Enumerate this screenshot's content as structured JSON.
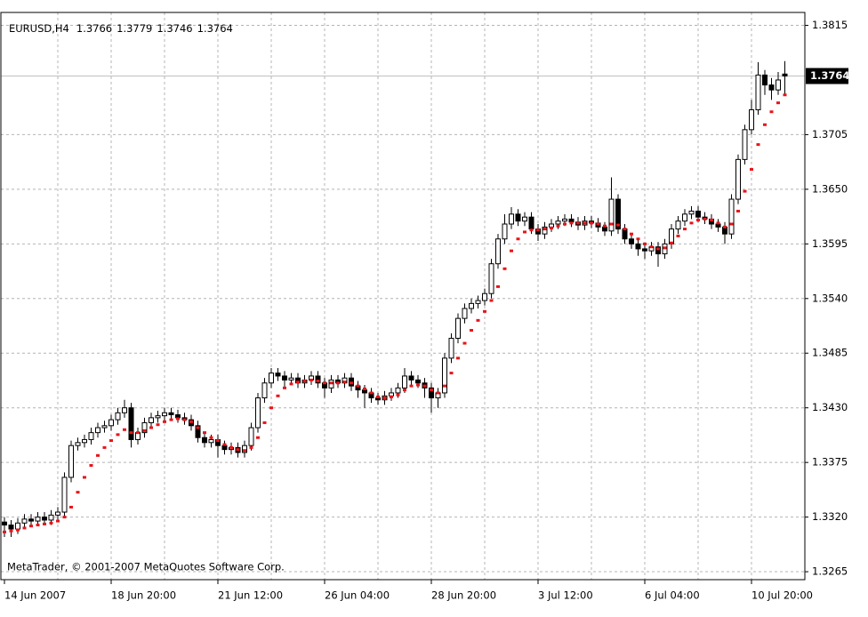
{
  "chart_data": {
    "type": "candlestick",
    "title": "EURUSD,H4",
    "annotation": "MetaTrader, © 2001-2007 MetaQuotes Software Corp.",
    "categories": [
      "14 Jun 2007",
      null,
      null,
      null,
      null,
      null,
      null,
      null,
      null,
      null,
      null,
      null,
      null,
      null,
      null,
      null,
      "18 Jun 20:00",
      null,
      null,
      null,
      null,
      null,
      null,
      null,
      null,
      null,
      null,
      null,
      null,
      null,
      null,
      null,
      "21 Jun 12:00",
      null,
      null,
      null,
      null,
      null,
      null,
      null,
      null,
      null,
      null,
      null,
      null,
      null,
      null,
      null,
      "26 Jun 04:00",
      null,
      null,
      null,
      null,
      null,
      null,
      null,
      null,
      null,
      null,
      null,
      null,
      null,
      null,
      null,
      "28 Jun 20:00",
      null,
      null,
      null,
      null,
      null,
      null,
      null,
      null,
      null,
      null,
      null,
      null,
      null,
      null,
      null,
      "3 Jul 12:00",
      null,
      null,
      null,
      null,
      null,
      null,
      null,
      null,
      null,
      null,
      null,
      null,
      null,
      null,
      null,
      "6 Jul 04:00",
      null,
      null,
      null,
      null,
      null,
      null,
      null,
      null,
      null,
      null,
      null,
      null,
      null,
      null,
      null,
      "10 Jul 20:00",
      null,
      null,
      null,
      null,
      null
    ],
    "open": [
      1.3315,
      1.3312,
      1.3308,
      1.3314,
      1.3318,
      1.3316,
      1.332,
      1.3317,
      1.3322,
      1.3325,
      1.336,
      1.3392,
      1.3395,
      1.3398,
      1.3405,
      1.341,
      1.3412,
      1.3418,
      1.3425,
      1.343,
      1.3398,
      1.3405,
      1.3415,
      1.342,
      1.3422,
      1.3425,
      1.3423,
      1.342,
      1.3418,
      1.3412,
      1.34,
      1.3395,
      1.3398,
      1.3392,
      1.3388,
      1.339,
      1.3385,
      1.3392,
      1.341,
      1.344,
      1.3455,
      1.3465,
      1.3462,
      1.3458,
      1.346,
      1.3455,
      1.3458,
      1.3462,
      1.3455,
      1.345,
      1.3458,
      1.3455,
      1.346,
      1.3452,
      1.3448,
      1.3445,
      1.344,
      1.3438,
      1.3442,
      1.3445,
      1.345,
      1.3462,
      1.3458,
      1.3455,
      1.345,
      1.344,
      1.3445,
      1.348,
      1.35,
      1.352,
      1.353,
      1.3535,
      1.3538,
      1.3545,
      1.3575,
      1.36,
      1.3615,
      1.3625,
      1.3618,
      1.3622,
      1.361,
      1.3605,
      1.3612,
      1.3615,
      1.3618,
      1.362,
      1.3617,
      1.3614,
      1.3618,
      1.3616,
      1.3612,
      1.3608,
      1.364,
      1.361,
      1.36,
      1.3595,
      1.359,
      1.3588,
      1.3592,
      1.3585,
      1.3595,
      1.361,
      1.3618,
      1.3625,
      1.3628,
      1.3622,
      1.362,
      1.3615,
      1.3612,
      1.3605,
      1.364,
      1.368,
      1.371,
      1.373,
      1.3765,
      1.3755,
      1.375,
      1.3766
    ],
    "high": [
      1.332,
      1.3317,
      1.3319,
      1.3323,
      1.3323,
      1.3325,
      1.3325,
      1.3327,
      1.333,
      1.3365,
      1.3397,
      1.34,
      1.3403,
      1.341,
      1.3415,
      1.3417,
      1.3423,
      1.343,
      1.3438,
      1.3435,
      1.341,
      1.342,
      1.3425,
      1.3427,
      1.343,
      1.343,
      1.3428,
      1.3425,
      1.3423,
      1.3417,
      1.3405,
      1.3403,
      1.3403,
      1.3397,
      1.3395,
      1.3395,
      1.3397,
      1.3415,
      1.3445,
      1.346,
      1.347,
      1.347,
      1.3467,
      1.3465,
      1.3465,
      1.3463,
      1.3467,
      1.3467,
      1.346,
      1.3463,
      1.3463,
      1.3465,
      1.3465,
      1.3457,
      1.3453,
      1.345,
      1.3445,
      1.3447,
      1.345,
      1.3455,
      1.347,
      1.3467,
      1.3463,
      1.346,
      1.3455,
      1.345,
      1.3485,
      1.3505,
      1.3525,
      1.3535,
      1.354,
      1.3543,
      1.355,
      1.358,
      1.3605,
      1.3625,
      1.3632,
      1.363,
      1.3627,
      1.3627,
      1.3615,
      1.3617,
      1.362,
      1.3623,
      1.3625,
      1.3625,
      1.3622,
      1.3623,
      1.3623,
      1.3621,
      1.3617,
      1.3662,
      1.3645,
      1.3615,
      1.3605,
      1.36,
      1.3595,
      1.3597,
      1.3597,
      1.36,
      1.3615,
      1.3623,
      1.363,
      1.3633,
      1.3633,
      1.3627,
      1.3625,
      1.362,
      1.3617,
      1.3645,
      1.3685,
      1.3715,
      1.374,
      1.3778,
      1.377,
      1.3762,
      1.3768,
      1.3779
    ],
    "low": [
      1.33,
      1.33,
      1.3303,
      1.3309,
      1.3311,
      1.3311,
      1.3312,
      1.3312,
      1.3317,
      1.332,
      1.3355,
      1.3387,
      1.339,
      1.3393,
      1.34,
      1.3405,
      1.3407,
      1.3413,
      1.342,
      1.339,
      1.3393,
      1.34,
      1.341,
      1.3415,
      1.3417,
      1.3418,
      1.3415,
      1.3413,
      1.3407,
      1.3395,
      1.339,
      1.339,
      1.338,
      1.3383,
      1.3383,
      1.338,
      1.338,
      1.3387,
      1.3405,
      1.3435,
      1.345,
      1.3457,
      1.345,
      1.3453,
      1.345,
      1.345,
      1.3453,
      1.345,
      1.344,
      1.3445,
      1.345,
      1.345,
      1.3447,
      1.344,
      1.343,
      1.3435,
      1.3433,
      1.3433,
      1.3437,
      1.344,
      1.3445,
      1.3453,
      1.345,
      1.344,
      1.3425,
      1.343,
      1.344,
      1.3475,
      1.3495,
      1.3515,
      1.3525,
      1.353,
      1.3533,
      1.354,
      1.357,
      1.3595,
      1.361,
      1.3613,
      1.3613,
      1.3605,
      1.3598,
      1.36,
      1.3607,
      1.361,
      1.3613,
      1.3612,
      1.3609,
      1.3609,
      1.3611,
      1.3607,
      1.3603,
      1.3603,
      1.3605,
      1.3595,
      1.359,
      1.3583,
      1.358,
      1.3583,
      1.3572,
      1.358,
      1.359,
      1.3605,
      1.3613,
      1.362,
      1.3617,
      1.3615,
      1.361,
      1.3607,
      1.3595,
      1.36,
      1.3635,
      1.3675,
      1.3705,
      1.3725,
      1.3745,
      1.374,
      1.3745,
      1.3746
    ],
    "close": [
      1.3312,
      1.3308,
      1.3314,
      1.3318,
      1.3316,
      1.332,
      1.3317,
      1.3322,
      1.3325,
      1.336,
      1.3392,
      1.3395,
      1.3398,
      1.3405,
      1.341,
      1.3412,
      1.3418,
      1.3425,
      1.343,
      1.3398,
      1.3405,
      1.3415,
      1.342,
      1.3422,
      1.3425,
      1.3423,
      1.342,
      1.3418,
      1.3412,
      1.34,
      1.3395,
      1.3398,
      1.3392,
      1.3388,
      1.339,
      1.3385,
      1.3392,
      1.341,
      1.344,
      1.3455,
      1.3465,
      1.3462,
      1.3458,
      1.346,
      1.3455,
      1.3458,
      1.3462,
      1.3455,
      1.345,
      1.3458,
      1.3455,
      1.346,
      1.3452,
      1.3448,
      1.3445,
      1.344,
      1.3438,
      1.3442,
      1.3445,
      1.345,
      1.3462,
      1.3458,
      1.3455,
      1.345,
      1.344,
      1.3445,
      1.348,
      1.35,
      1.352,
      1.353,
      1.3535,
      1.3538,
      1.3545,
      1.3575,
      1.36,
      1.3615,
      1.3625,
      1.3618,
      1.3622,
      1.361,
      1.3605,
      1.3612,
      1.3615,
      1.3618,
      1.362,
      1.3617,
      1.3614,
      1.3618,
      1.3616,
      1.3612,
      1.3608,
      1.364,
      1.361,
      1.36,
      1.3595,
      1.359,
      1.3588,
      1.3592,
      1.3585,
      1.3595,
      1.361,
      1.3618,
      1.3625,
      1.3628,
      1.3622,
      1.362,
      1.3615,
      1.3612,
      1.3605,
      1.364,
      1.368,
      1.371,
      1.373,
      1.3765,
      1.3755,
      1.375,
      1.376,
      1.3764
    ],
    "indicator": {
      "color": "#e8141a",
      "values": [
        1.3305,
        1.3306,
        1.3307,
        1.3309,
        1.3311,
        1.3312,
        1.3313,
        1.3314,
        1.3316,
        1.332,
        1.333,
        1.3345,
        1.336,
        1.3372,
        1.3382,
        1.339,
        1.3397,
        1.3403,
        1.3408,
        1.3405,
        1.3405,
        1.3407,
        1.341,
        1.3413,
        1.3416,
        1.3418,
        1.3419,
        1.3418,
        1.3416,
        1.341,
        1.3405,
        1.34,
        1.3397,
        1.3393,
        1.339,
        1.3388,
        1.3387,
        1.339,
        1.34,
        1.3415,
        1.343,
        1.3442,
        1.345,
        1.3454,
        1.3456,
        1.3457,
        1.3458,
        1.3457,
        1.3455,
        1.3455,
        1.3455,
        1.3456,
        1.3455,
        1.3452,
        1.3449,
        1.3445,
        1.3441,
        1.344,
        1.3441,
        1.3443,
        1.3448,
        1.3452,
        1.3453,
        1.3452,
        1.3448,
        1.3445,
        1.3452,
        1.3465,
        1.348,
        1.3495,
        1.3508,
        1.3518,
        1.3527,
        1.3538,
        1.3552,
        1.357,
        1.3588,
        1.36,
        1.3607,
        1.3609,
        1.3609,
        1.361,
        1.3611,
        1.3613,
        1.3615,
        1.3616,
        1.3616,
        1.3616,
        1.3616,
        1.3615,
        1.3613,
        1.3615,
        1.3614,
        1.361,
        1.3605,
        1.36,
        1.3595,
        1.3592,
        1.359,
        1.3591,
        1.3596,
        1.3603,
        1.361,
        1.3616,
        1.3619,
        1.362,
        1.3619,
        1.3616,
        1.3612,
        1.3615,
        1.3628,
        1.3648,
        1.367,
        1.3695,
        1.3715,
        1.3728,
        1.3737,
        1.3745
      ]
    },
    "up_color": "#ffffff",
    "down_color": "#000000",
    "ylim": [
      1.3257,
      1.3828
    ],
    "yticks": [
      1.3815,
      1.3705,
      {
        "value": 1.365,
        "label": "1.3650"
      },
      1.3595,
      {
        "value": 1.354,
        "label": "1.3540"
      },
      1.3485,
      {
        "value": 1.343,
        "label": "1.3430"
      },
      1.3375,
      {
        "value": 1.332,
        "label": "1.3320"
      },
      1.3265
    ],
    "grid": true
  }
}
